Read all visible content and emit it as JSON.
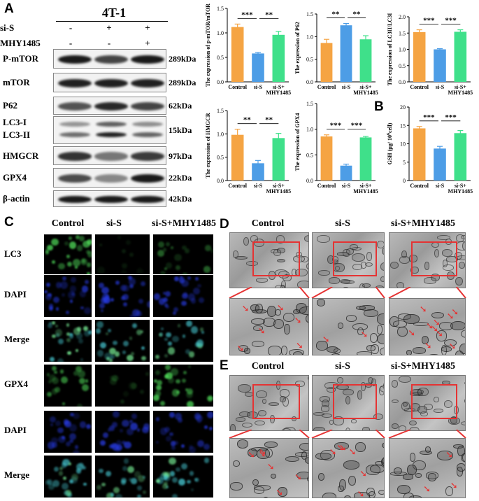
{
  "panels": {
    "A": "A",
    "B": "B",
    "C": "C",
    "D": "D",
    "E": "E"
  },
  "blot": {
    "cell_line": "4T-1",
    "treatments": [
      {
        "label": "si-S",
        "signs": [
          "-",
          "+",
          "+"
        ]
      },
      {
        "label": "MHY1485",
        "signs": [
          "-",
          "-",
          "+"
        ]
      }
    ],
    "rows": [
      {
        "label": "P-mTOR",
        "kda": "289kDa",
        "intensity": [
          0.95,
          0.7,
          0.95
        ]
      },
      {
        "label": "mTOR",
        "kda": "289kDa",
        "intensity": [
          0.9,
          0.9,
          0.9
        ]
      },
      {
        "label": "P62",
        "kda": "62kDa",
        "intensity": [
          0.6,
          0.85,
          0.7
        ]
      },
      {
        "label": "LC3-I",
        "label2": "LC3-II",
        "kda": "15kDa",
        "intensity": [
          0.45,
          0.9,
          0.5
        ]
      },
      {
        "label": "HMGCR",
        "kda": "97kDa",
        "intensity": [
          0.8,
          0.4,
          0.75
        ]
      },
      {
        "label": "GPX4",
        "kda": "22kDa",
        "intensity": [
          0.65,
          0.3,
          0.95
        ]
      },
      {
        "label": "β-actin",
        "kda": "42kDa",
        "intensity": [
          0.95,
          0.95,
          0.95
        ]
      }
    ]
  },
  "chart_data": [
    {
      "type": "bar",
      "ylabel": "The expression of  p-mTOR/mTOR",
      "categories": [
        "Control",
        "si-S",
        "si-S+\nMHY1485"
      ],
      "values": [
        1.12,
        0.58,
        0.96
      ],
      "errors": [
        0.06,
        0.02,
        0.07
      ],
      "ylim": [
        0,
        1.5
      ],
      "yticks": [
        "0.0",
        "0.5",
        "1.0",
        "1.5"
      ],
      "sig": [
        {
          "from": 0,
          "to": 1,
          "label": "***"
        },
        {
          "from": 1,
          "to": 2,
          "label": "**"
        }
      ]
    },
    {
      "type": "bar",
      "ylabel": "The expression of P62",
      "categories": [
        "Control",
        "si-S",
        "si-S+\nMHY1485"
      ],
      "values": [
        0.86,
        1.25,
        0.94
      ],
      "errors": [
        0.08,
        0.04,
        0.08
      ],
      "ylim": [
        0,
        1.5
      ],
      "yticks": [
        "0.0",
        "0.5",
        "1.0",
        "1.5"
      ],
      "sig": [
        {
          "from": 0,
          "to": 1,
          "label": "**"
        },
        {
          "from": 1,
          "to": 2,
          "label": "**"
        }
      ]
    },
    {
      "type": "bar",
      "ylabel": "The expression of LC3II/LC3I",
      "categories": [
        "Control",
        "si-S",
        "si-S+\nMHY1485"
      ],
      "values": [
        1.53,
        1.0,
        1.54
      ],
      "errors": [
        0.07,
        0.02,
        0.06
      ],
      "ylim": [
        0,
        2.0
      ],
      "yticks": [
        "0.0",
        "0.5",
        "1.0",
        "1.5",
        "2.0"
      ],
      "sig": [
        {
          "from": 0,
          "to": 1,
          "label": "***"
        },
        {
          "from": 1,
          "to": 2,
          "label": "***"
        }
      ]
    },
    {
      "type": "bar",
      "ylabel": "The expression of HMGCR",
      "categories": [
        "Control",
        "si-S",
        "si-S+\nMHY1485"
      ],
      "values": [
        0.98,
        0.37,
        0.91
      ],
      "errors": [
        0.12,
        0.06,
        0.1
      ],
      "ylim": [
        0,
        1.5
      ],
      "yticks": [
        "0.0",
        "0.5",
        "1.0",
        "1.5"
      ],
      "sig": [
        {
          "from": 0,
          "to": 1,
          "label": "**"
        },
        {
          "from": 1,
          "to": 2,
          "label": "**"
        }
      ]
    },
    {
      "type": "bar",
      "ylabel": "The expression of GPX4",
      "categories": [
        "Control",
        "si-S",
        "si-S+\nMHY1485"
      ],
      "values": [
        0.86,
        0.29,
        0.84
      ],
      "errors": [
        0.03,
        0.03,
        0.02
      ],
      "ylim": [
        0,
        1.5
      ],
      "yticks": [
        "0.0",
        "0.5",
        "1.0",
        "1.5"
      ],
      "sig": [
        {
          "from": 0,
          "to": 1,
          "label": "***"
        },
        {
          "from": 1,
          "to": 2,
          "label": "***"
        }
      ]
    },
    {
      "type": "bar",
      "ylabel": "GSH (μg/ 10^6cell)",
      "categories": [
        "Control",
        "si-S",
        "si-S+\nMHY1485"
      ],
      "values": [
        14.2,
        8.7,
        12.9
      ],
      "errors": [
        0.5,
        0.6,
        0.7
      ],
      "ylim": [
        0,
        20
      ],
      "yticks": [
        "0",
        "5",
        "10",
        "15",
        "20"
      ],
      "sig": [
        {
          "from": 0,
          "to": 1,
          "label": "***"
        },
        {
          "from": 1,
          "to": 2,
          "label": "***"
        }
      ]
    }
  ],
  "colors": {
    "control": "#f5a443",
    "sis": "#4d9de6",
    "mhy": "#3fe08a",
    "frame": "#e53333"
  },
  "fluorescence": {
    "columns": [
      "Control",
      "si-S",
      "si-S+MHY1485"
    ],
    "rows": [
      {
        "label": "LC3",
        "tone": "green",
        "levels": [
          0.8,
          0.15,
          0.45
        ]
      },
      {
        "label": "DAPI",
        "tone": "blue",
        "levels": [
          0.75,
          0.8,
          0.75
        ]
      },
      {
        "label": "Merge",
        "tone": "cyan",
        "levels": [
          0.85,
          0.75,
          0.7
        ]
      },
      {
        "label": "GPX4",
        "tone": "green",
        "levels": [
          0.6,
          0.2,
          0.8
        ]
      },
      {
        "label": "DAPI",
        "tone": "blue",
        "levels": [
          0.7,
          0.75,
          0.75
        ]
      },
      {
        "label": "Merge",
        "tone": "cyan",
        "levels": [
          0.75,
          0.7,
          0.8
        ]
      }
    ]
  },
  "em_D": {
    "columns": [
      "Control",
      "si-S",
      "si-S+MHY1485"
    ],
    "arrows": [
      6,
      2,
      10
    ]
  },
  "em_E": {
    "columns": [
      "Control",
      "si-S",
      "si-S+MHY1485"
    ],
    "arrows": [
      6,
      6,
      3
    ]
  }
}
